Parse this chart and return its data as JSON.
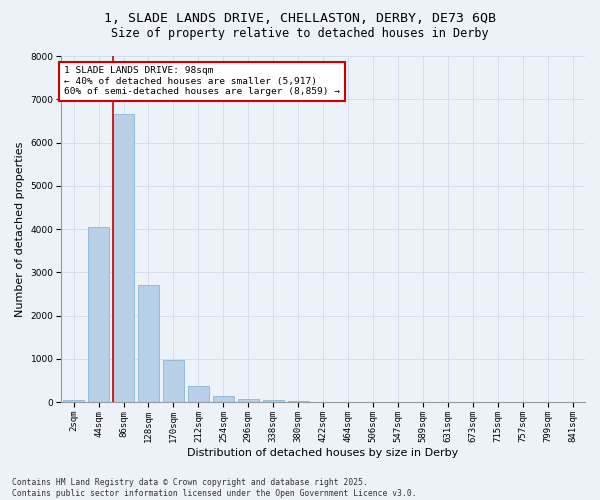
{
  "title_line1": "1, SLADE LANDS DRIVE, CHELLASTON, DERBY, DE73 6QB",
  "title_line2": "Size of property relative to detached houses in Derby",
  "xlabel": "Distribution of detached houses by size in Derby",
  "ylabel": "Number of detached properties",
  "categories": [
    "2sqm",
    "44sqm",
    "86sqm",
    "128sqm",
    "170sqm",
    "212sqm",
    "254sqm",
    "296sqm",
    "338sqm",
    "380sqm",
    "422sqm",
    "464sqm",
    "506sqm",
    "547sqm",
    "589sqm",
    "631sqm",
    "673sqm",
    "715sqm",
    "757sqm",
    "799sqm",
    "841sqm"
  ],
  "values": [
    50,
    4050,
    6650,
    2700,
    970,
    360,
    140,
    70,
    50,
    30,
    0,
    0,
    0,
    0,
    0,
    0,
    0,
    0,
    0,
    0,
    0
  ],
  "bar_color": "#b8cfe8",
  "bar_edge_color": "#7aadd4",
  "grid_color": "#d0daea",
  "background_color": "#edf2f9",
  "vline_x_index": 2,
  "vline_color": "#cc0000",
  "annotation_text": "1 SLADE LANDS DRIVE: 98sqm\n← 40% of detached houses are smaller (5,917)\n60% of semi-detached houses are larger (8,859) →",
  "annotation_box_color": "#ffffff",
  "annotation_box_edge_color": "#cc0000",
  "ylim": [
    0,
    8000
  ],
  "yticks": [
    0,
    1000,
    2000,
    3000,
    4000,
    5000,
    6000,
    7000,
    8000
  ],
  "footer_text": "Contains HM Land Registry data © Crown copyright and database right 2025.\nContains public sector information licensed under the Open Government Licence v3.0.",
  "title_fontsize": 9.5,
  "subtitle_fontsize": 8.5,
  "tick_fontsize": 6.5,
  "label_fontsize": 8,
  "annotation_fontsize": 6.8,
  "footer_fontsize": 5.8
}
